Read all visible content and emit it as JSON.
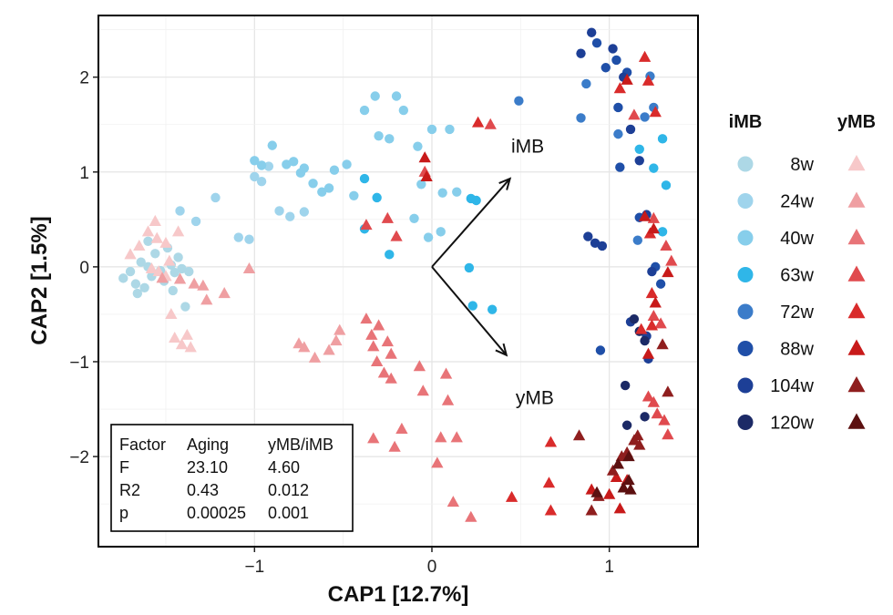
{
  "chart_data": {
    "type": "scatter",
    "xlabel": "CAP1 [12.7%]",
    "ylabel": "CAP2 [1.5%]",
    "xlim": [
      -1.88,
      1.5
    ],
    "ylim": [
      -2.95,
      2.65
    ],
    "x_ticks": [
      -1,
      0,
      1
    ],
    "y_ticks": [
      -2,
      -1,
      0,
      1,
      2
    ],
    "x_tick_labels": [
      "−1",
      "0",
      "1"
    ],
    "y_tick_labels": [
      "−2",
      "−1",
      "0",
      "1",
      "2"
    ],
    "grid": true,
    "legend_titles": {
      "imb": "iMB",
      "ymb": "yMB"
    },
    "legend_position": "right",
    "arrows": [
      {
        "label": "iMB",
        "x": 0.44,
        "y": 0.93,
        "label_x": 0.54,
        "label_y": 1.27
      },
      {
        "label": "yMB",
        "x": 0.42,
        "y": -0.93,
        "label_x": 0.58,
        "label_y": -1.38
      }
    ],
    "stats_table": {
      "header": [
        "Factor",
        "Aging",
        "yMB/iMB"
      ],
      "rows": [
        [
          "F",
          "23.10",
          "4.60"
        ],
        [
          "R2",
          "0.43",
          "0.012"
        ],
        [
          "p",
          "0.00025",
          "0.001"
        ]
      ]
    },
    "groups": [
      {
        "age": "8w",
        "imb_color": "#add8e6",
        "ymb_color": "#f7c8c9"
      },
      {
        "age": "24w",
        "imb_color": "#9fd4ec",
        "ymb_color": "#ef9fa2"
      },
      {
        "age": "40w",
        "imb_color": "#87ceeb",
        "ymb_color": "#e87478"
      },
      {
        "age": "63w",
        "imb_color": "#2fb6e8",
        "ymb_color": "#e04a4e"
      },
      {
        "age": "72w",
        "imb_color": "#3b7cc9",
        "ymb_color": "#d92b2b"
      },
      {
        "age": "88w",
        "imb_color": "#1f4fa8",
        "ymb_color": "#c81a1a"
      },
      {
        "age": "104w",
        "imb_color": "#1d3f96",
        "ymb_color": "#8f1e1e"
      },
      {
        "age": "120w",
        "imb_color": "#1c2a66",
        "ymb_color": "#5c1010"
      }
    ],
    "series": [
      {
        "name": "iMB 8w",
        "shape": "circle",
        "color": "#add8e6",
        "points": [
          [
            -1.74,
            -0.12
          ],
          [
            -1.7,
            -0.05
          ],
          [
            -1.67,
            -0.18
          ],
          [
            -1.66,
            -0.28
          ],
          [
            -1.64,
            0.05
          ],
          [
            -1.62,
            -0.22
          ],
          [
            -1.6,
            0.0
          ],
          [
            -1.58,
            -0.1
          ],
          [
            -1.56,
            0.14
          ],
          [
            -1.53,
            -0.04
          ],
          [
            -1.51,
            -0.15
          ],
          [
            -1.49,
            0.2
          ],
          [
            -1.47,
            0.02
          ],
          [
            -1.45,
            -0.06
          ],
          [
            -1.43,
            0.1
          ],
          [
            -1.41,
            -0.02
          ],
          [
            -1.39,
            -0.42
          ],
          [
            -1.37,
            -0.05
          ],
          [
            -1.6,
            0.27
          ],
          [
            -1.46,
            -0.25
          ]
        ]
      },
      {
        "name": "iMB 24w",
        "shape": "circle",
        "color": "#9fd4ec",
        "points": [
          [
            -1.42,
            0.59
          ],
          [
            -1.33,
            0.48
          ],
          [
            -1.22,
            0.73
          ],
          [
            -1.09,
            0.31
          ],
          [
            -1.03,
            0.29
          ],
          [
            -0.86,
            0.59
          ],
          [
            -0.8,
            0.53
          ],
          [
            -0.72,
            0.58
          ],
          [
            -1.0,
            0.95
          ],
          [
            -0.96,
            0.9
          ],
          [
            -0.92,
            1.06
          ]
        ]
      },
      {
        "name": "iMB 40w",
        "shape": "circle",
        "color": "#87ceeb",
        "points": [
          [
            -1.0,
            1.12
          ],
          [
            -0.96,
            1.07
          ],
          [
            -0.9,
            1.28
          ],
          [
            -0.82,
            1.08
          ],
          [
            -0.78,
            1.11
          ],
          [
            -0.74,
            0.99
          ],
          [
            -0.72,
            1.04
          ],
          [
            -0.67,
            0.88
          ],
          [
            -0.62,
            0.79
          ],
          [
            -0.58,
            0.83
          ],
          [
            -0.55,
            1.02
          ],
          [
            -0.48,
            1.08
          ],
          [
            -0.44,
            0.75
          ],
          [
            -0.38,
            1.65
          ],
          [
            -0.32,
            1.8
          ],
          [
            -0.2,
            1.8
          ],
          [
            -0.3,
            1.38
          ],
          [
            -0.24,
            1.35
          ],
          [
            -0.16,
            1.65
          ],
          [
            -0.08,
            1.27
          ],
          [
            0.0,
            1.45
          ],
          [
            0.1,
            1.45
          ],
          [
            -0.06,
            0.87
          ],
          [
            0.06,
            0.78
          ],
          [
            -0.02,
            0.31
          ],
          [
            0.05,
            0.37
          ],
          [
            -0.1,
            0.51
          ],
          [
            0.14,
            0.79
          ]
        ]
      },
      {
        "name": "iMB 63w",
        "shape": "circle",
        "color": "#2fb6e8",
        "points": [
          [
            -0.38,
            0.93
          ],
          [
            -0.31,
            0.73
          ],
          [
            -0.24,
            0.13
          ],
          [
            -0.38,
            0.4
          ],
          [
            0.22,
            0.72
          ],
          [
            0.25,
            0.7
          ],
          [
            0.21,
            -0.01
          ],
          [
            0.23,
            -0.41
          ],
          [
            0.34,
            -0.45
          ],
          [
            1.17,
            1.24
          ],
          [
            1.25,
            1.04
          ],
          [
            1.3,
            1.35
          ],
          [
            1.32,
            0.86
          ],
          [
            1.3,
            0.37
          ]
        ]
      },
      {
        "name": "iMB 72w",
        "shape": "circle",
        "color": "#3b7cc9",
        "points": [
          [
            0.49,
            1.75
          ],
          [
            0.84,
            1.57
          ],
          [
            0.87,
            1.93
          ],
          [
            1.05,
            1.4
          ],
          [
            1.2,
            1.58
          ],
          [
            1.25,
            1.68
          ],
          [
            1.23,
            2.01
          ],
          [
            1.16,
            0.28
          ]
        ]
      },
      {
        "name": "iMB 88w",
        "shape": "circle",
        "color": "#1f4fa8",
        "points": [
          [
            0.93,
            2.36
          ],
          [
            0.98,
            2.1
          ],
          [
            1.04,
            2.18
          ],
          [
            1.1,
            2.05
          ],
          [
            1.05,
            1.68
          ],
          [
            1.06,
            1.05
          ],
          [
            1.17,
            0.52
          ],
          [
            0.95,
            -0.88
          ],
          [
            1.26,
            0.0
          ],
          [
            1.29,
            -0.18
          ]
        ]
      },
      {
        "name": "iMB 104w",
        "shape": "circle",
        "color": "#1d3f96",
        "points": [
          [
            0.9,
            2.47
          ],
          [
            0.84,
            2.25
          ],
          [
            1.02,
            2.3
          ],
          [
            1.08,
            2.0
          ],
          [
            1.12,
            1.45
          ],
          [
            1.17,
            1.12
          ],
          [
            1.21,
            0.55
          ],
          [
            0.88,
            0.32
          ],
          [
            0.92,
            0.25
          ],
          [
            0.96,
            0.22
          ],
          [
            1.24,
            -0.05
          ],
          [
            1.12,
            -0.58
          ],
          [
            1.21,
            -0.73
          ],
          [
            1.22,
            -0.97
          ]
        ]
      },
      {
        "name": "iMB 120w",
        "shape": "circle",
        "color": "#1c2a66",
        "points": [
          [
            1.14,
            -0.55
          ],
          [
            1.17,
            -0.68
          ],
          [
            1.2,
            -0.78
          ],
          [
            1.09,
            -1.25
          ],
          [
            1.2,
            -1.58
          ],
          [
            1.1,
            -1.67
          ]
        ]
      },
      {
        "name": "yMB 8w",
        "shape": "triangle",
        "color": "#f7c8c9",
        "points": [
          [
            -1.7,
            0.13
          ],
          [
            -1.65,
            0.22
          ],
          [
            -1.6,
            0.37
          ],
          [
            -1.56,
            0.48
          ],
          [
            -1.58,
            -0.02
          ],
          [
            -1.55,
            0.3
          ],
          [
            -1.5,
            0.25
          ],
          [
            -1.48,
            0.06
          ],
          [
            -1.54,
            -0.05
          ],
          [
            -1.5,
            -0.1
          ],
          [
            -1.43,
            0.37
          ],
          [
            -1.45,
            -0.75
          ],
          [
            -1.41,
            -0.82
          ],
          [
            -1.38,
            -0.72
          ],
          [
            -1.36,
            -0.85
          ],
          [
            -1.47,
            -0.5
          ]
        ]
      },
      {
        "name": "yMB 24w",
        "shape": "triangle",
        "color": "#ef9fa2",
        "points": [
          [
            -1.52,
            -0.12
          ],
          [
            -1.42,
            -0.13
          ],
          [
            -1.34,
            -0.18
          ],
          [
            -1.29,
            -0.2
          ],
          [
            -1.27,
            -0.35
          ],
          [
            -1.17,
            -0.28
          ],
          [
            -1.03,
            -0.02
          ],
          [
            -0.75,
            -0.81
          ],
          [
            -0.72,
            -0.85
          ],
          [
            -0.66,
            -0.96
          ],
          [
            -0.58,
            -0.88
          ],
          [
            -0.54,
            -0.78
          ],
          [
            -0.52,
            -0.67
          ]
        ]
      },
      {
        "name": "yMB 40w",
        "shape": "triangle",
        "color": "#e87478",
        "points": [
          [
            -0.37,
            -0.55
          ],
          [
            -0.3,
            -0.62
          ],
          [
            -0.34,
            -0.72
          ],
          [
            -0.25,
            -0.79
          ],
          [
            -0.33,
            -0.84
          ],
          [
            -0.31,
            -1.0
          ],
          [
            -0.23,
            -0.92
          ],
          [
            -0.27,
            -1.12
          ],
          [
            -0.23,
            -1.18
          ],
          [
            -0.07,
            -1.05
          ],
          [
            -0.05,
            -1.31
          ],
          [
            0.08,
            -1.13
          ],
          [
            0.09,
            -1.41
          ],
          [
            -0.33,
            -1.81
          ],
          [
            -0.21,
            -1.9
          ],
          [
            -0.17,
            -1.71
          ],
          [
            0.05,
            -1.8
          ],
          [
            0.14,
            -1.8
          ],
          [
            0.03,
            -2.07
          ],
          [
            0.12,
            -2.48
          ],
          [
            0.22,
            -2.64
          ]
        ]
      },
      {
        "name": "yMB 63w",
        "shape": "triangle",
        "color": "#e04a4e",
        "points": [
          [
            0.33,
            1.5
          ],
          [
            -0.04,
            1.0
          ],
          [
            -0.37,
            0.44
          ],
          [
            -0.25,
            0.51
          ],
          [
            -0.2,
            0.32
          ],
          [
            1.14,
            1.6
          ],
          [
            1.25,
            0.51
          ],
          [
            1.35,
            0.06
          ],
          [
            1.32,
            0.22
          ],
          [
            1.25,
            -0.52
          ],
          [
            1.29,
            -0.6
          ],
          [
            1.22,
            -1.37
          ],
          [
            1.25,
            -1.43
          ],
          [
            1.31,
            -1.62
          ],
          [
            1.33,
            -1.77
          ],
          [
            1.27,
            -1.55
          ]
        ]
      },
      {
        "name": "yMB 72w",
        "shape": "triangle",
        "color": "#d92b2b",
        "points": [
          [
            0.26,
            1.52
          ],
          [
            1.2,
            2.21
          ],
          [
            1.22,
            1.96
          ],
          [
            1.06,
            1.88
          ],
          [
            1.26,
            1.63
          ],
          [
            1.23,
            0.35
          ],
          [
            1.24,
            -0.62
          ],
          [
            1.18,
            -0.66
          ],
          [
            1.24,
            -0.28
          ],
          [
            0.67,
            -1.85
          ],
          [
            0.66,
            -2.28
          ],
          [
            0.67,
            -2.57
          ],
          [
            0.45,
            -2.43
          ]
        ]
      },
      {
        "name": "yMB 88w",
        "shape": "triangle",
        "color": "#c81a1a",
        "points": [
          [
            -0.04,
            1.15
          ],
          [
            -0.03,
            0.95
          ],
          [
            1.1,
            1.97
          ],
          [
            1.25,
            0.4
          ],
          [
            1.2,
            0.53
          ],
          [
            1.33,
            -0.06
          ],
          [
            1.26,
            -0.38
          ],
          [
            1.22,
            -0.92
          ],
          [
            1.06,
            -2.55
          ],
          [
            1.04,
            -2.22
          ],
          [
            1.1,
            -2.25
          ],
          [
            1.0,
            -2.4
          ],
          [
            0.9,
            -2.35
          ]
        ]
      },
      {
        "name": "yMB 104w",
        "shape": "triangle",
        "color": "#8f1e1e",
        "points": [
          [
            1.33,
            -1.32
          ],
          [
            1.3,
            -0.82
          ],
          [
            0.83,
            -1.78
          ],
          [
            1.07,
            -2.0
          ],
          [
            1.1,
            -1.96
          ],
          [
            1.14,
            -1.83
          ],
          [
            1.17,
            -1.88
          ],
          [
            1.02,
            -2.15
          ],
          [
            0.94,
            -2.42
          ],
          [
            1.16,
            -1.78
          ],
          [
            0.9,
            -2.57
          ]
        ]
      },
      {
        "name": "yMB 120w",
        "shape": "triangle",
        "color": "#5c1010",
        "points": [
          [
            1.12,
            -2.35
          ],
          [
            1.08,
            -2.33
          ],
          [
            0.93,
            -2.38
          ],
          [
            1.05,
            -2.08
          ],
          [
            1.11,
            -2.0
          ],
          [
            1.11,
            -2.25
          ]
        ]
      }
    ]
  }
}
